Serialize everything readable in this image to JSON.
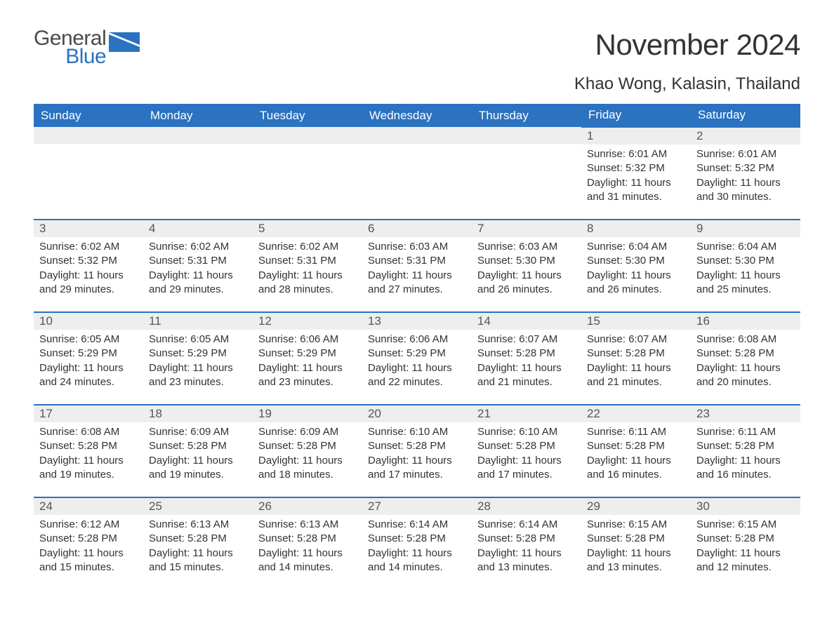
{
  "brand": {
    "word1": "General",
    "word2": "Blue"
  },
  "title": "November 2024",
  "location": "Khao Wong, Kalasin, Thailand",
  "colors": {
    "accent": "#2b72c0",
    "header_text": "#ffffff",
    "daynum_bg": "#eeeeee",
    "text": "#333333",
    "brand_dark": "#4a4a4a"
  },
  "day_labels": [
    "Sunday",
    "Monday",
    "Tuesday",
    "Wednesday",
    "Thursday",
    "Friday",
    "Saturday"
  ],
  "field_labels": {
    "sunrise": "Sunrise: ",
    "sunset": "Sunset: ",
    "daylight": "Daylight: "
  },
  "weeks": [
    [
      null,
      null,
      null,
      null,
      null,
      {
        "n": "1",
        "sunrise": "6:01 AM",
        "sunset": "5:32 PM",
        "daylight": "11 hours and 31 minutes."
      },
      {
        "n": "2",
        "sunrise": "6:01 AM",
        "sunset": "5:32 PM",
        "daylight": "11 hours and 30 minutes."
      }
    ],
    [
      {
        "n": "3",
        "sunrise": "6:02 AM",
        "sunset": "5:32 PM",
        "daylight": "11 hours and 29 minutes."
      },
      {
        "n": "4",
        "sunrise": "6:02 AM",
        "sunset": "5:31 PM",
        "daylight": "11 hours and 29 minutes."
      },
      {
        "n": "5",
        "sunrise": "6:02 AM",
        "sunset": "5:31 PM",
        "daylight": "11 hours and 28 minutes."
      },
      {
        "n": "6",
        "sunrise": "6:03 AM",
        "sunset": "5:31 PM",
        "daylight": "11 hours and 27 minutes."
      },
      {
        "n": "7",
        "sunrise": "6:03 AM",
        "sunset": "5:30 PM",
        "daylight": "11 hours and 26 minutes."
      },
      {
        "n": "8",
        "sunrise": "6:04 AM",
        "sunset": "5:30 PM",
        "daylight": "11 hours and 26 minutes."
      },
      {
        "n": "9",
        "sunrise": "6:04 AM",
        "sunset": "5:30 PM",
        "daylight": "11 hours and 25 minutes."
      }
    ],
    [
      {
        "n": "10",
        "sunrise": "6:05 AM",
        "sunset": "5:29 PM",
        "daylight": "11 hours and 24 minutes."
      },
      {
        "n": "11",
        "sunrise": "6:05 AM",
        "sunset": "5:29 PM",
        "daylight": "11 hours and 23 minutes."
      },
      {
        "n": "12",
        "sunrise": "6:06 AM",
        "sunset": "5:29 PM",
        "daylight": "11 hours and 23 minutes."
      },
      {
        "n": "13",
        "sunrise": "6:06 AM",
        "sunset": "5:29 PM",
        "daylight": "11 hours and 22 minutes."
      },
      {
        "n": "14",
        "sunrise": "6:07 AM",
        "sunset": "5:28 PM",
        "daylight": "11 hours and 21 minutes."
      },
      {
        "n": "15",
        "sunrise": "6:07 AM",
        "sunset": "5:28 PM",
        "daylight": "11 hours and 21 minutes."
      },
      {
        "n": "16",
        "sunrise": "6:08 AM",
        "sunset": "5:28 PM",
        "daylight": "11 hours and 20 minutes."
      }
    ],
    [
      {
        "n": "17",
        "sunrise": "6:08 AM",
        "sunset": "5:28 PM",
        "daylight": "11 hours and 19 minutes."
      },
      {
        "n": "18",
        "sunrise": "6:09 AM",
        "sunset": "5:28 PM",
        "daylight": "11 hours and 19 minutes."
      },
      {
        "n": "19",
        "sunrise": "6:09 AM",
        "sunset": "5:28 PM",
        "daylight": "11 hours and 18 minutes."
      },
      {
        "n": "20",
        "sunrise": "6:10 AM",
        "sunset": "5:28 PM",
        "daylight": "11 hours and 17 minutes."
      },
      {
        "n": "21",
        "sunrise": "6:10 AM",
        "sunset": "5:28 PM",
        "daylight": "11 hours and 17 minutes."
      },
      {
        "n": "22",
        "sunrise": "6:11 AM",
        "sunset": "5:28 PM",
        "daylight": "11 hours and 16 minutes."
      },
      {
        "n": "23",
        "sunrise": "6:11 AM",
        "sunset": "5:28 PM",
        "daylight": "11 hours and 16 minutes."
      }
    ],
    [
      {
        "n": "24",
        "sunrise": "6:12 AM",
        "sunset": "5:28 PM",
        "daylight": "11 hours and 15 minutes."
      },
      {
        "n": "25",
        "sunrise": "6:13 AM",
        "sunset": "5:28 PM",
        "daylight": "11 hours and 15 minutes."
      },
      {
        "n": "26",
        "sunrise": "6:13 AM",
        "sunset": "5:28 PM",
        "daylight": "11 hours and 14 minutes."
      },
      {
        "n": "27",
        "sunrise": "6:14 AM",
        "sunset": "5:28 PM",
        "daylight": "11 hours and 14 minutes."
      },
      {
        "n": "28",
        "sunrise": "6:14 AM",
        "sunset": "5:28 PM",
        "daylight": "11 hours and 13 minutes."
      },
      {
        "n": "29",
        "sunrise": "6:15 AM",
        "sunset": "5:28 PM",
        "daylight": "11 hours and 13 minutes."
      },
      {
        "n": "30",
        "sunrise": "6:15 AM",
        "sunset": "5:28 PM",
        "daylight": "11 hours and 12 minutes."
      }
    ]
  ]
}
